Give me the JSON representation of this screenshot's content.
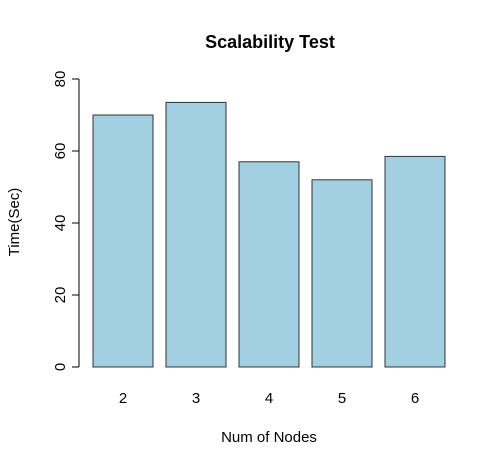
{
  "chart_data": {
    "type": "bar",
    "title": "Scalability Test",
    "xlabel": "Num of Nodes",
    "ylabel": "Time(Sec)",
    "categories": [
      "2",
      "3",
      "4",
      "5",
      "6"
    ],
    "values": [
      70,
      73.5,
      57,
      52,
      58.5
    ],
    "ylim": [
      0,
      80
    ],
    "yticks": [
      0,
      20,
      40,
      60,
      80
    ],
    "bar_color": "#a2cfe1",
    "grid": false,
    "legend": "none"
  }
}
